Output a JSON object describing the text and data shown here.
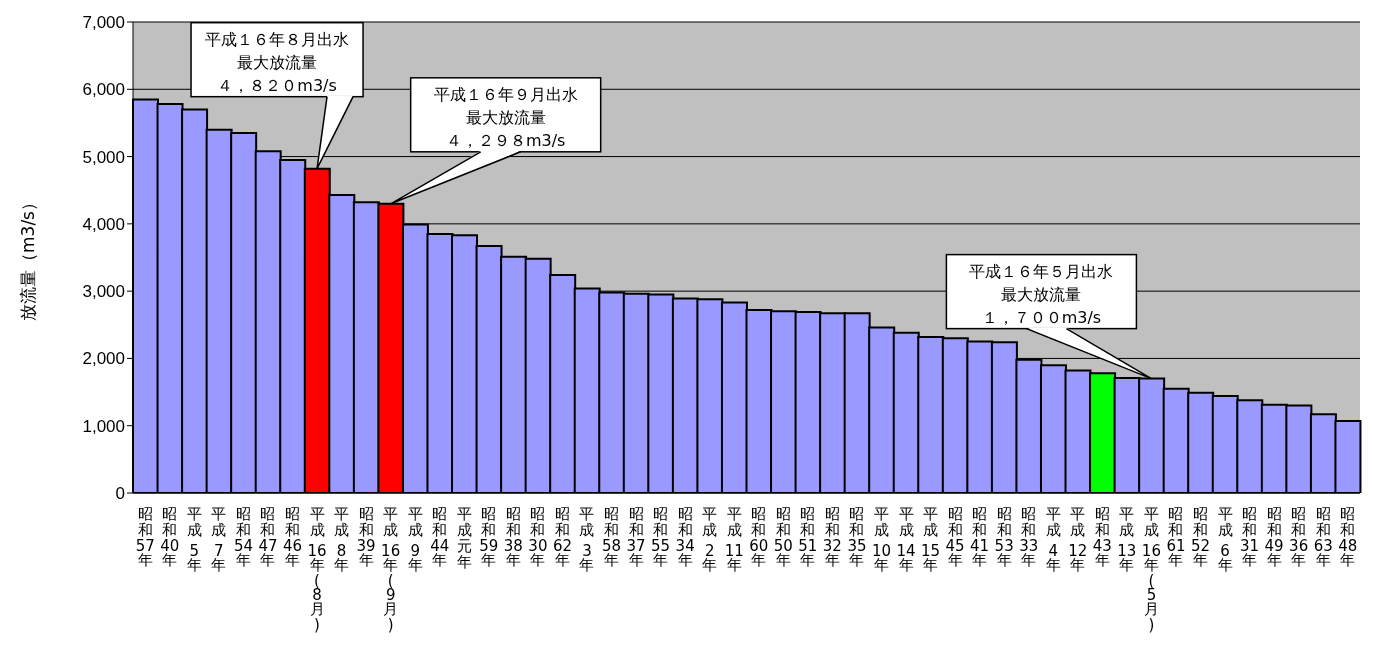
{
  "chart_data": {
    "type": "bar",
    "ylabel": "放流量（m3/s）",
    "categories": [
      "昭和57年",
      "昭和40年",
      "平成 5年",
      "平成 7年",
      "昭和54年",
      "昭和47年",
      "昭和46年",
      "平成 16年(8月)",
      "平成 8年",
      "昭和39年",
      "平成 16年(9月)",
      "平成 9年",
      "昭和44年",
      "平成元年",
      "昭和59年",
      "昭和38年",
      "昭和30年",
      "昭和62年",
      "平成 3年",
      "昭和58年",
      "昭和37年",
      "昭和55年",
      "昭和34年",
      "平成 2年",
      "平成 11年",
      "昭和60年",
      "昭和50年",
      "昭和51年",
      "昭和32年",
      "昭和35年",
      "平成 10年",
      "平成 14年",
      "平成 15年",
      "昭和45年",
      "昭和41年",
      "昭和53年",
      "昭和33年",
      "平成 4年",
      "平成 12年",
      "昭和43年",
      "平成 13年",
      "平成 16年(5月)",
      "昭和61年",
      "昭和52年",
      "平成 6年",
      "昭和31年",
      "昭和49年",
      "昭和36年",
      "昭和63年",
      "昭和48年"
    ],
    "values": [
      5850,
      5780,
      5700,
      5400,
      5350,
      5080,
      4950,
      4820,
      4430,
      4320,
      4298,
      3990,
      3850,
      3830,
      3670,
      3510,
      3480,
      3240,
      3040,
      2980,
      2960,
      2950,
      2890,
      2880,
      2830,
      2720,
      2700,
      2690,
      2670,
      2670,
      2460,
      2380,
      2320,
      2300,
      2250,
      2240,
      1980,
      1900,
      1820,
      1780,
      1710,
      1700,
      1550,
      1490,
      1440,
      1380,
      1310,
      1300,
      1170,
      1070
    ],
    "colors": [
      "#9999ff",
      "#9999ff",
      "#9999ff",
      "#9999ff",
      "#9999ff",
      "#9999ff",
      "#9999ff",
      "#ff0000",
      "#9999ff",
      "#9999ff",
      "#ff0000",
      "#9999ff",
      "#9999ff",
      "#9999ff",
      "#9999ff",
      "#9999ff",
      "#9999ff",
      "#9999ff",
      "#9999ff",
      "#9999ff",
      "#9999ff",
      "#9999ff",
      "#9999ff",
      "#9999ff",
      "#9999ff",
      "#9999ff",
      "#9999ff",
      "#9999ff",
      "#9999ff",
      "#9999ff",
      "#9999ff",
      "#9999ff",
      "#9999ff",
      "#9999ff",
      "#9999ff",
      "#9999ff",
      "#9999ff",
      "#9999ff",
      "#9999ff",
      "#00ff00",
      "#9999ff",
      "#9999ff",
      "#9999ff",
      "#9999ff",
      "#9999ff",
      "#9999ff",
      "#9999ff",
      "#9999ff",
      "#9999ff",
      "#9999ff"
    ],
    "ylim": [
      0,
      7000
    ],
    "yticks": [
      0,
      {
        "value": 1000,
        "label": "1,000"
      },
      {
        "value": 2000,
        "label": "2,000"
      },
      {
        "value": 3000,
        "label": "3,000"
      },
      {
        "value": 4000,
        "label": "4,000"
      },
      {
        "value": 5000,
        "label": "5,000"
      },
      {
        "value": 6000,
        "label": "6,000"
      },
      {
        "value": 7000,
        "label": "7,000"
      }
    ],
    "grid": "y",
    "legend": false,
    "annotations": [
      {
        "text": "平成１６年８月出水最大放流量４，８２０m3/s",
        "x": "平成 16年(8月)",
        "y": 4820
      },
      {
        "text": "平成１６年９月出水最大放流量４，２９８m3/s",
        "x": "平成 16年(9月)",
        "y": 4298
      },
      {
        "text": "平成１６年５月出水最大放流量１，７００m3/s",
        "x": "平成 16年(5月)",
        "y": 1700
      }
    ]
  }
}
